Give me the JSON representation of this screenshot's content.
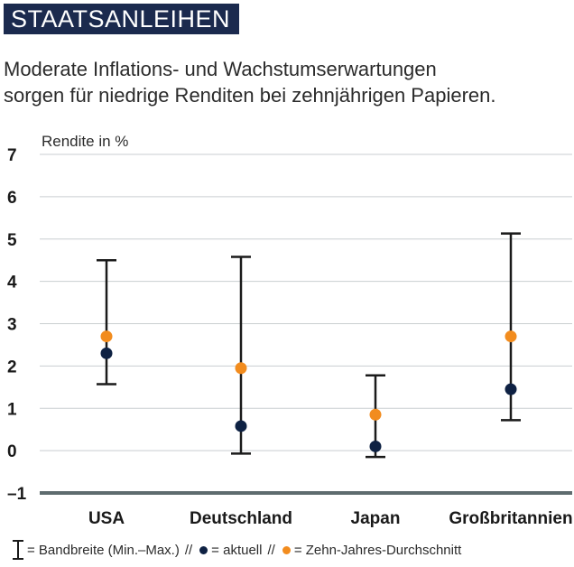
{
  "section_label": "STAATSANLEIHEN",
  "subtitle_lines": [
    "Moderate Inflations- und Wachstumserwartungen",
    "sorgen für niedrige Renditen bei zehnjährigen Papieren."
  ],
  "colors": {
    "badge_bg": "#1b2a4e",
    "current": "#0e2143",
    "average": "#f28c1e",
    "range": "#1a1a1a",
    "axis": "#5e6b6e",
    "grid": "#c9ced0"
  },
  "legend": {
    "range_label": "= Bandbreite (Min.–Max.)",
    "separator": "//",
    "current_label": "= aktuell",
    "average_label": "= Zehn-Jahres-Durchschnitt"
  },
  "chart_data": {
    "type": "scatter",
    "ylabel": "Rendite in %",
    "ylim": [
      -1,
      7
    ],
    "yticks": [
      "7",
      "6",
      "5",
      "4",
      "3",
      "2",
      "1",
      "0",
      "–1"
    ],
    "categories": [
      "USA",
      "Deutschland",
      "Japan",
      "Großbritannien"
    ],
    "series": [
      {
        "name": "aktuell",
        "values": [
          2.3,
          0.58,
          0.1,
          1.45
        ]
      },
      {
        "name": "Zehn-Jahres-Durchschnitt",
        "values": [
          2.7,
          1.95,
          0.85,
          2.7
        ]
      }
    ],
    "range": {
      "min": [
        1.57,
        -0.07,
        -0.15,
        0.72
      ],
      "max": [
        4.5,
        4.58,
        1.78,
        5.13
      ]
    },
    "grid": true
  }
}
